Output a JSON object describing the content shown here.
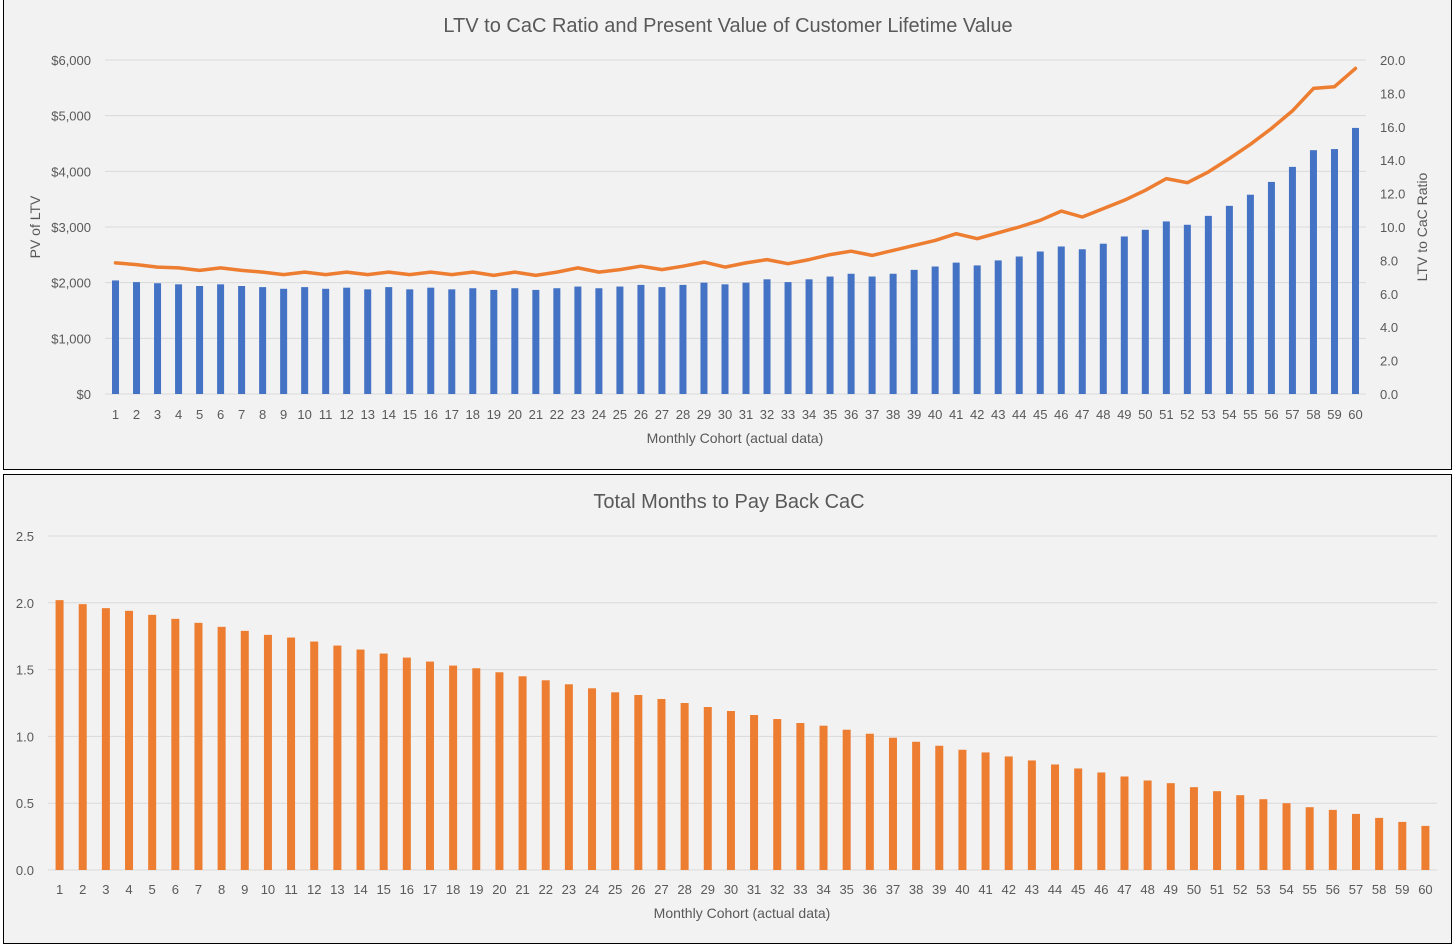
{
  "colors": {
    "bar_blue": "#4472c4",
    "line_orange": "#ed7d31",
    "bar_orange": "#ed7d31",
    "gridline": "#d9d9d9",
    "text": "#595959",
    "background": "#f2f2f2"
  },
  "chart_data": [
    {
      "type": "bar+line",
      "title": "LTV to CaC Ratio and Present Value of Customer Lifetime Value",
      "xlabel": "Monthly Cohort (actual data)",
      "ylabel": "PV of LTV",
      "y2label": "LTV to CaC Ratio",
      "ylim": [
        0,
        6000
      ],
      "y2lim": [
        0,
        20
      ],
      "y_ticks": [
        "$0",
        "$1,000",
        "$2,000",
        "$3,000",
        "$4,000",
        "$5,000",
        "$6,000"
      ],
      "y2_ticks": [
        "0.0",
        "2.0",
        "4.0",
        "6.0",
        "8.0",
        "10.0",
        "12.0",
        "14.0",
        "16.0",
        "18.0",
        "20.0"
      ],
      "grid": true,
      "legend": "none",
      "categories": [
        "1",
        "2",
        "3",
        "4",
        "5",
        "6",
        "7",
        "8",
        "9",
        "10",
        "11",
        "12",
        "13",
        "14",
        "15",
        "16",
        "17",
        "18",
        "19",
        "20",
        "21",
        "22",
        "23",
        "24",
        "25",
        "26",
        "27",
        "28",
        "29",
        "30",
        "31",
        "32",
        "33",
        "34",
        "35",
        "36",
        "37",
        "38",
        "39",
        "40",
        "41",
        "42",
        "43",
        "44",
        "45",
        "46",
        "47",
        "48",
        "49",
        "50",
        "51",
        "52",
        "53",
        "54",
        "55",
        "56",
        "57",
        "58",
        "59",
        "60"
      ],
      "series": [
        {
          "type": "bar",
          "axis": "left",
          "values": [
            2040,
            2010,
            1990,
            1970,
            1940,
            1970,
            1940,
            1920,
            1890,
            1920,
            1890,
            1910,
            1880,
            1920,
            1880,
            1910,
            1880,
            1900,
            1870,
            1900,
            1870,
            1900,
            1930,
            1900,
            1930,
            1960,
            1920,
            1960,
            2000,
            1970,
            2000,
            2060,
            2010,
            2060,
            2110,
            2160,
            2110,
            2160,
            2230,
            2290,
            2360,
            2310,
            2400,
            2470,
            2560,
            2650,
            2600,
            2700,
            2830,
            2950,
            3100,
            3040,
            3200,
            3380,
            3580,
            3810,
            4080,
            4380,
            4400,
            4780
          ]
        },
        {
          "type": "line",
          "axis": "right",
          "values": [
            7.85,
            7.75,
            7.6,
            7.55,
            7.4,
            7.55,
            7.4,
            7.3,
            7.15,
            7.3,
            7.15,
            7.3,
            7.15,
            7.3,
            7.15,
            7.3,
            7.15,
            7.3,
            7.1,
            7.3,
            7.1,
            7.3,
            7.55,
            7.3,
            7.45,
            7.65,
            7.45,
            7.65,
            7.9,
            7.6,
            7.85,
            8.05,
            7.8,
            8.05,
            8.35,
            8.55,
            8.3,
            8.6,
            8.9,
            9.2,
            9.6,
            9.3,
            9.65,
            10.0,
            10.4,
            10.95,
            10.6,
            11.1,
            11.6,
            12.2,
            12.9,
            12.65,
            13.3,
            14.1,
            14.95,
            15.9,
            16.95,
            18.3,
            18.4,
            19.5
          ]
        }
      ]
    },
    {
      "type": "bar",
      "title": "Total Months to Pay Back CaC",
      "xlabel": "Monthly Cohort (actual data)",
      "ylabel": "",
      "ylim": [
        0,
        2.5
      ],
      "y_ticks": [
        "0.0",
        "0.5",
        "1.0",
        "1.5",
        "2.0",
        "2.5"
      ],
      "grid": true,
      "legend": "none",
      "categories": [
        "1",
        "2",
        "3",
        "4",
        "5",
        "6",
        "7",
        "8",
        "9",
        "10",
        "11",
        "12",
        "13",
        "14",
        "15",
        "16",
        "17",
        "18",
        "19",
        "20",
        "21",
        "22",
        "23",
        "24",
        "25",
        "26",
        "27",
        "28",
        "29",
        "30",
        "31",
        "32",
        "33",
        "34",
        "35",
        "36",
        "37",
        "38",
        "39",
        "40",
        "41",
        "42",
        "43",
        "44",
        "45",
        "46",
        "47",
        "48",
        "49",
        "50",
        "51",
        "52",
        "53",
        "54",
        "55",
        "56",
        "57",
        "58",
        "59",
        "60"
      ],
      "values": [
        2.02,
        1.99,
        1.96,
        1.94,
        1.91,
        1.88,
        1.85,
        1.82,
        1.79,
        1.76,
        1.74,
        1.71,
        1.68,
        1.65,
        1.62,
        1.59,
        1.56,
        1.53,
        1.51,
        1.48,
        1.45,
        1.42,
        1.39,
        1.36,
        1.33,
        1.31,
        1.28,
        1.25,
        1.22,
        1.19,
        1.16,
        1.13,
        1.1,
        1.08,
        1.05,
        1.02,
        0.99,
        0.96,
        0.93,
        0.9,
        0.88,
        0.85,
        0.82,
        0.79,
        0.76,
        0.73,
        0.7,
        0.67,
        0.65,
        0.62,
        0.59,
        0.56,
        0.53,
        0.5,
        0.47,
        0.45,
        0.42,
        0.39,
        0.36,
        0.33
      ]
    }
  ]
}
